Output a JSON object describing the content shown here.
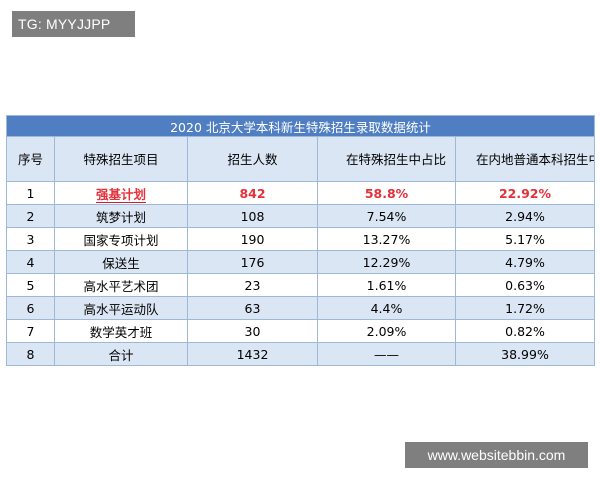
{
  "watermark_top": "TG: MYYJJPP",
  "watermark_bottom": "www.websitebbin.com",
  "table": {
    "title": "2020 北京大学本科新生特殊招生录取数据统计",
    "headers": [
      "序号",
      "特殊招生项目",
      "招生人数",
      "在特殊招生中占比",
      "在内地普通本科招生中占比"
    ],
    "rows": [
      {
        "no": "1",
        "name": "强基计划",
        "count": "842",
        "pct_special": "58.8%",
        "pct_mainland": "22.92%"
      },
      {
        "no": "2",
        "name": "筑梦计划",
        "count": "108",
        "pct_special": "7.54%",
        "pct_mainland": "2.94%"
      },
      {
        "no": "3",
        "name": "国家专项计划",
        "count": "190",
        "pct_special": "13.27%",
        "pct_mainland": "5.17%"
      },
      {
        "no": "4",
        "name": "保送生",
        "count": "176",
        "pct_special": "12.29%",
        "pct_mainland": "4.79%"
      },
      {
        "no": "5",
        "name": "高水平艺术团",
        "count": "23",
        "pct_special": "1.61%",
        "pct_mainland": "0.63%"
      },
      {
        "no": "6",
        "name": "高水平运动队",
        "count": "63",
        "pct_special": "4.4%",
        "pct_mainland": "1.72%"
      },
      {
        "no": "7",
        "name": "数学英才班",
        "count": "30",
        "pct_special": "2.09%",
        "pct_mainland": "0.82%"
      },
      {
        "no": "8",
        "name": "合计",
        "count": "1432",
        "pct_special": "——",
        "pct_mainland": "38.99%"
      }
    ]
  },
  "colors": {
    "title_bg": "#4f7ec2",
    "band_bg": "#dbe6f4",
    "highlight_text": "#e5303a",
    "watermark_bg": "#7f7f7f"
  }
}
